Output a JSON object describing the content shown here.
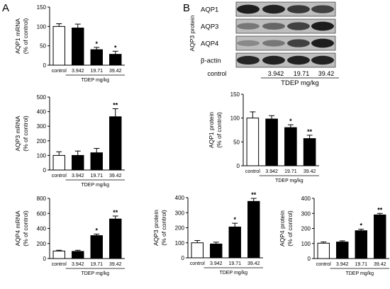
{
  "panels": [
    {
      "id": "panel-A",
      "letter": "A"
    },
    {
      "id": "panel-B",
      "letter": "B"
    }
  ],
  "blot": {
    "rows": [
      "AQP1",
      "AQP3",
      "AQP4",
      "β-actin"
    ],
    "ylabel": "AQP3 protein",
    "categories": [
      "control",
      "3.942",
      "19.71",
      "39.42"
    ],
    "group_label": "TDEP mg/kg"
  },
  "chart_data": [
    {
      "id": "aqp1-mrna",
      "type": "bar",
      "categories": [
        "control",
        "3.942",
        "19.71",
        "39.42"
      ],
      "values": [
        100,
        96,
        40,
        28
      ],
      "errors": [
        7,
        10,
        6,
        8
      ],
      "significance": [
        "",
        "",
        "*",
        "*"
      ],
      "ylabel": [
        "AQP1 mRNA",
        "(% of control)"
      ],
      "yticks": [
        0,
        50,
        100,
        150
      ],
      "ylim": [
        0,
        150
      ],
      "group_label": "TDEP mg/kg",
      "colors": [
        "#ffffff",
        "#000000",
        "#000000",
        "#000000"
      ]
    },
    {
      "id": "aqp3-mrna",
      "type": "bar",
      "categories": [
        "control",
        "3.942",
        "19.71",
        "39.42"
      ],
      "values": [
        100,
        100,
        118,
        365
      ],
      "errors": [
        25,
        30,
        30,
        55
      ],
      "significance": [
        "",
        "",
        "",
        "**"
      ],
      "ylabel": [
        "AQP3 mRNA",
        "(% of control)"
      ],
      "yticks": [
        0,
        100,
        200,
        300,
        400,
        500
      ],
      "ylim": [
        0,
        500
      ],
      "group_label": "TDEP mg/kg",
      "colors": [
        "#ffffff",
        "#000000",
        "#000000",
        "#000000"
      ]
    },
    {
      "id": "aqp4-mrna",
      "type": "bar",
      "categories": [
        "control",
        "3.942",
        "19.71",
        "39.42"
      ],
      "values": [
        100,
        95,
        305,
        525
      ],
      "errors": [
        10,
        15,
        20,
        40
      ],
      "significance": [
        "",
        "",
        "*",
        "**"
      ],
      "ylabel": [
        "AQP4 mRNA",
        "(% of control)"
      ],
      "yticks": [
        0,
        200,
        400,
        600,
        800
      ],
      "ylim": [
        0,
        800
      ],
      "group_label": "TDEP mg/kg",
      "colors": [
        "#ffffff",
        "#000000",
        "#000000",
        "#000000"
      ]
    },
    {
      "id": "aqp1-protein",
      "type": "bar",
      "categories": [
        "control",
        "3.942",
        "19.71",
        "39.42"
      ],
      "values": [
        100,
        98,
        80,
        57
      ],
      "errors": [
        13,
        7,
        6,
        7
      ],
      "significance": [
        "",
        "",
        "*",
        "**"
      ],
      "ylabel": [
        "AQP1 protein",
        "(% of control)"
      ],
      "yticks": [
        0,
        50,
        100,
        150
      ],
      "ylim": [
        0,
        150
      ],
      "group_label": "TDEP mg/kg",
      "colors": [
        "#ffffff",
        "#000000",
        "#000000",
        "#000000"
      ]
    },
    {
      "id": "aqp3-protein",
      "type": "bar",
      "categories": [
        "control",
        "3.942",
        "19.71",
        "39.42"
      ],
      "values": [
        100,
        92,
        205,
        375
      ],
      "errors": [
        15,
        12,
        25,
        20
      ],
      "significance": [
        "",
        "",
        "*",
        "**"
      ],
      "ylabel": [
        "AQP3 protein",
        "(% of control)"
      ],
      "yticks": [
        0,
        100,
        200,
        300,
        400
      ],
      "ylim": [
        0,
        400
      ],
      "group_label": "TDEP mg/kg",
      "colors": [
        "#ffffff",
        "#000000",
        "#000000",
        "#000000"
      ]
    },
    {
      "id": "aqp4-protein",
      "type": "bar",
      "categories": [
        "control",
        "3.942",
        "19.71",
        "39.42"
      ],
      "values": [
        102,
        110,
        185,
        290
      ],
      "errors": [
        8,
        8,
        10,
        10
      ],
      "significance": [
        "",
        "",
        "*",
        "**"
      ],
      "ylabel": [
        "AQP4 protein",
        "(% of control)"
      ],
      "yticks": [
        0,
        100,
        200,
        300,
        400
      ],
      "ylim": [
        0,
        400
      ],
      "group_label": "TDEP mg/kg",
      "colors": [
        "#ffffff",
        "#000000",
        "#000000",
        "#000000"
      ]
    }
  ]
}
